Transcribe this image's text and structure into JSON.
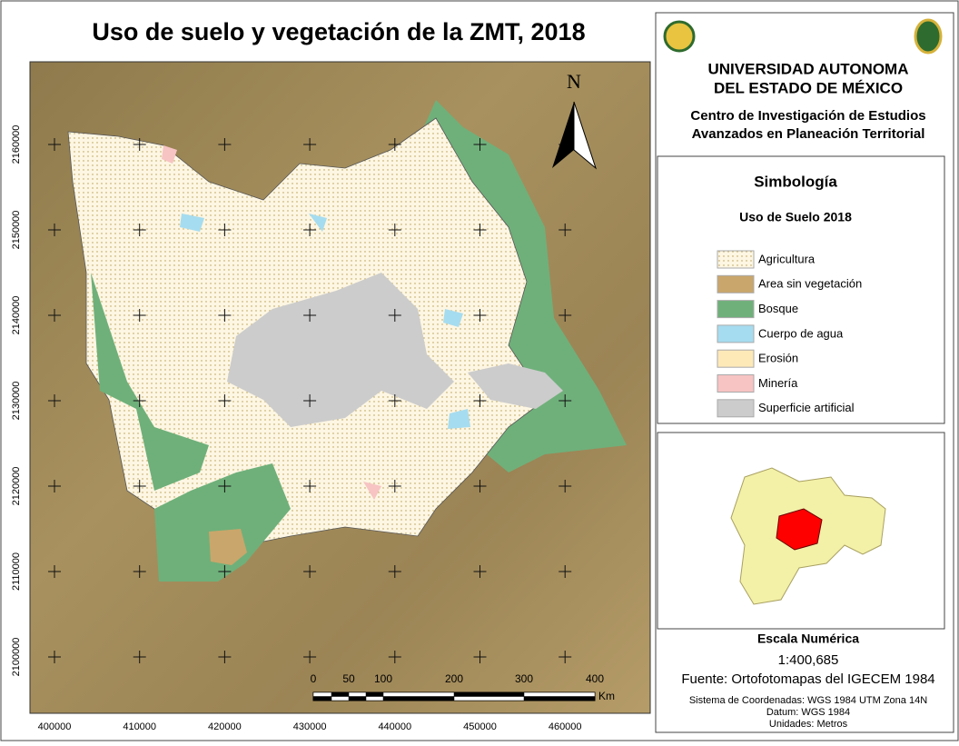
{
  "title": "Uso de suelo y vegetación de la ZMT, 2018",
  "institution": {
    "name": [
      "UNIVERSIDAD AUTONOMA",
      "DEL ESTADO DE MÉXICO"
    ],
    "center": [
      "Centro de Investigación de Estudios",
      "Avanzados en Planeación Territorial"
    ]
  },
  "north": "N",
  "legend": {
    "title": "Simbología",
    "subtitle": "Uso de Suelo 2018",
    "items": [
      {
        "label": "Agricultura",
        "color": "#fdf6e3"
      },
      {
        "label": "Area sin vegetación",
        "color": "#c9a66b"
      },
      {
        "label": "Bosque",
        "color": "#6fb07a"
      },
      {
        "label": "Cuerpo de agua",
        "color": "#a6dcef"
      },
      {
        "label": "Erosión",
        "color": "#fde9b8"
      },
      {
        "label": "Minería",
        "color": "#f7c3c3"
      },
      {
        "label": "Superficie artificial",
        "color": "#cccccc"
      }
    ]
  },
  "scale": {
    "title": "Escala Numérica",
    "ratio": "1:400,685",
    "labels": [
      "0",
      "50",
      "100",
      "200",
      "300",
      "400"
    ],
    "unit": "Km"
  },
  "source": "Fuente: Ortofotomapas del IGECEM 1984",
  "crs": [
    "Sistema de Coordenadas: WGS 1984 UTM Zona 14N",
    "Datum: WGS 1984",
    "Unidades: Metros"
  ],
  "x_labels": [
    "400000",
    "410000",
    "420000",
    "430000",
    "440000",
    "450000",
    "460000"
  ],
  "y_labels": [
    "2160000",
    "2150000",
    "2140000",
    "2130000",
    "2120000",
    "2110000",
    "2100000"
  ]
}
